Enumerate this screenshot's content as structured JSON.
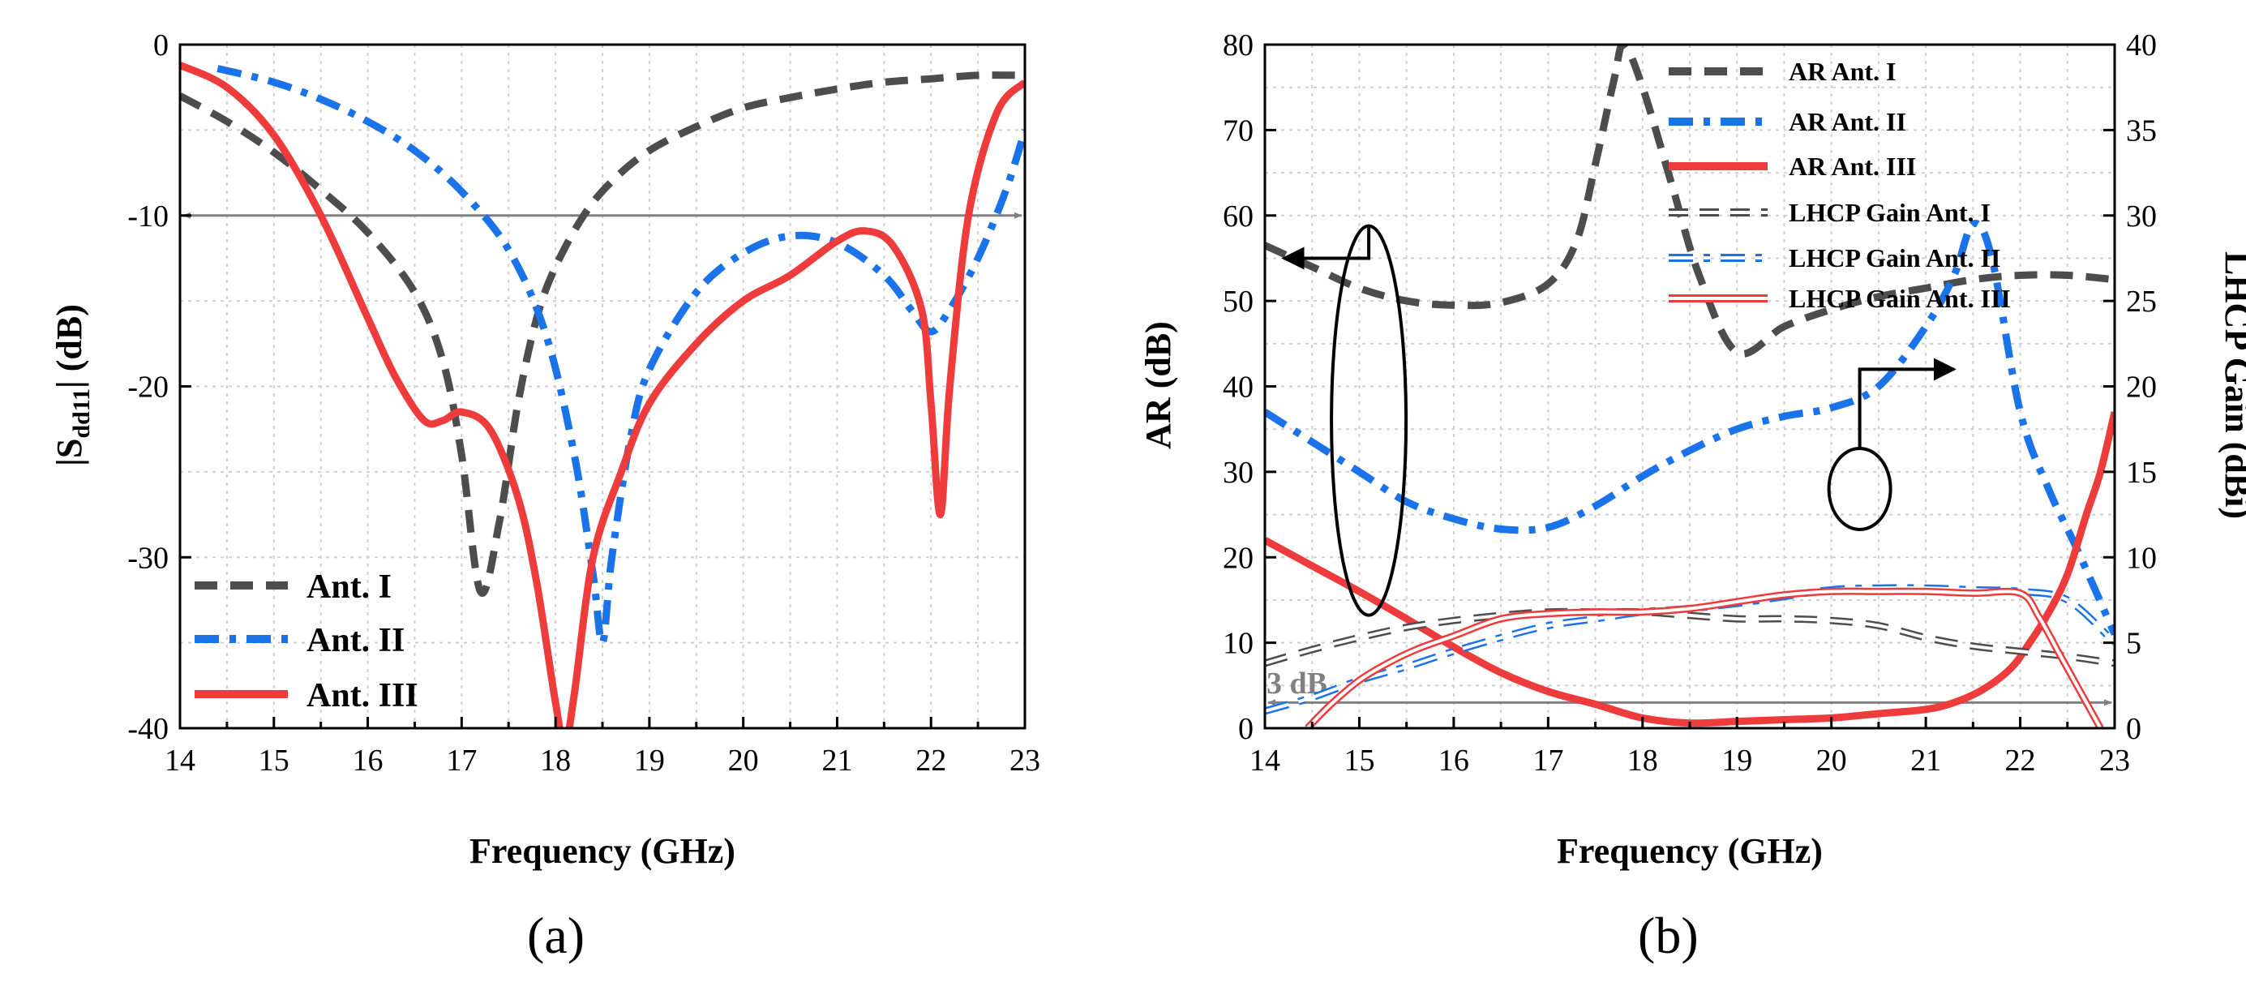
{
  "colors": {
    "ant1": "#4d4d4d",
    "ant2": "#1a73e8",
    "ant3": "#ee3b3b",
    "ref": "#808080",
    "grid": "#cfcfcf",
    "ellipse": "#000000"
  },
  "chart_data": [
    {
      "type": "line",
      "panel_label": "(a)",
      "xlabel": "Frequency (GHz)",
      "ylabel_prefix": "|S",
      "ylabel_sub": "dd11",
      "ylabel_suffix": "| (dB)",
      "xlim": [
        14,
        23
      ],
      "ylim": [
        -40,
        0
      ],
      "xticks": [
        14,
        15,
        16,
        17,
        18,
        19,
        20,
        21,
        22,
        23
      ],
      "yticks": [
        0,
        -10,
        -20,
        -30,
        -40
      ],
      "grid": true,
      "reference_line": {
        "y": -10,
        "x": [
          14,
          23
        ],
        "arrows": "both"
      },
      "legend": [
        "Ant. I",
        "Ant. II",
        "Ant. III"
      ],
      "series": [
        {
          "name": "Ant. I",
          "style": "dash",
          "color_key": "ant1",
          "x": [
            14,
            14.5,
            15,
            15.5,
            16,
            16.5,
            16.8,
            17.0,
            17.2,
            17.4,
            17.6,
            17.8,
            18.0,
            18.3,
            18.6,
            19,
            19.5,
            20,
            20.5,
            21,
            21.5,
            22,
            22.5,
            23
          ],
          "y": [
            -3,
            -4.5,
            -6.3,
            -8.5,
            -11,
            -14.5,
            -18.5,
            -24,
            -32,
            -28,
            -21,
            -16,
            -13,
            -10,
            -8,
            -6.2,
            -4.8,
            -3.7,
            -3.1,
            -2.6,
            -2.2,
            -2,
            -1.8,
            -1.8
          ]
        },
        {
          "name": "Ant. II",
          "style": "dashdot",
          "color_key": "ant2",
          "x": [
            14.4,
            15,
            15.5,
            16,
            16.5,
            17,
            17.5,
            17.9,
            18.2,
            18.4,
            18.5,
            18.6,
            18.8,
            19,
            19.5,
            20,
            20.5,
            21,
            21.5,
            21.8,
            22.0,
            22.2,
            22.5,
            22.8,
            23
          ],
          "y": [
            -1.4,
            -2.2,
            -3.2,
            -4.5,
            -6.2,
            -8.6,
            -12,
            -17,
            -24,
            -31,
            -35,
            -30,
            -23,
            -19,
            -14.5,
            -12.2,
            -11.2,
            -11.6,
            -13.5,
            -15.6,
            -16.8,
            -15.5,
            -12.5,
            -8.5,
            -5
          ]
        },
        {
          "name": "Ant. III",
          "style": "solid",
          "color_key": "ant3",
          "x": [
            14,
            14.5,
            15,
            15.5,
            16,
            16.3,
            16.6,
            16.8,
            17.0,
            17.3,
            17.6,
            17.8,
            18.0,
            18.1,
            18.2,
            18.4,
            18.7,
            19,
            19.5,
            20,
            20.5,
            21,
            21.3,
            21.6,
            21.9,
            22.0,
            22.1,
            22.2,
            22.4,
            22.7,
            23
          ],
          "y": [
            -1.2,
            -2.5,
            -5.3,
            -10,
            -16,
            -19.5,
            -22,
            -22,
            -21.5,
            -22.5,
            -26.5,
            -31.5,
            -38.5,
            -41,
            -38,
            -30,
            -25,
            -21,
            -17.5,
            -15,
            -13.5,
            -11.5,
            -10.9,
            -11.8,
            -15.5,
            -21,
            -27.5,
            -20,
            -10,
            -4,
            -2.2
          ]
        }
      ]
    },
    {
      "type": "line",
      "panel_label": "(b)",
      "xlabel": "Frequency (GHz)",
      "ylabel": "AR (dB)",
      "ylabel_right": "LHCP Gain (dBi)",
      "xlim": [
        14,
        23
      ],
      "ylim": [
        0,
        80
      ],
      "ylim_right": [
        0,
        40
      ],
      "xticks": [
        14,
        15,
        16,
        17,
        18,
        19,
        20,
        21,
        22,
        23
      ],
      "yticks": [
        0,
        10,
        20,
        30,
        40,
        50,
        60,
        70,
        80
      ],
      "yticks_right": [
        0,
        5,
        10,
        15,
        20,
        25,
        30,
        35,
        40
      ],
      "grid": true,
      "reference_line": {
        "y": 3,
        "x": [
          14,
          23
        ],
        "label": "3 dB",
        "arrows": "both"
      },
      "annotations": [
        {
          "type": "ellipse",
          "target_axis": "left",
          "center": [
            15.1,
            36
          ],
          "arrow_to": [
            14.2,
            55
          ]
        },
        {
          "type": "ellipse",
          "target_axis": "right",
          "center": [
            20.3,
            14
          ],
          "arrow_to": [
            21.3,
            21
          ]
        }
      ],
      "legend": [
        "AR Ant. I",
        "AR Ant. II",
        "AR Ant. III",
        "LHCP Gain Ant. I",
        "LHCP Gain Ant. II",
        "LHCP Gain Ant. III"
      ],
      "series": [
        {
          "name": "AR Ant. I",
          "axis": "left",
          "style": "dash",
          "color_key": "ant1",
          "x": [
            14,
            14.5,
            15,
            15.5,
            16,
            16.5,
            17,
            17.3,
            17.5,
            17.7,
            17.8,
            18.0,
            18.3,
            18.6,
            19,
            19.5,
            20,
            20.5,
            21,
            21.5,
            22,
            22.5,
            23
          ],
          "y": [
            56.5,
            54,
            51.5,
            50,
            49.5,
            49.8,
            52,
            57,
            66,
            76,
            80,
            75,
            64,
            53,
            44,
            47,
            49,
            50.5,
            51.5,
            52.5,
            53,
            53,
            52.5
          ]
        },
        {
          "name": "AR Ant. II",
          "axis": "left",
          "style": "dashdot",
          "color_key": "ant2",
          "x": [
            14,
            14.5,
            15,
            15.5,
            16,
            16.5,
            17,
            17.5,
            18,
            18.5,
            19,
            19.5,
            20,
            20.5,
            21,
            21.3,
            21.5,
            21.7,
            22,
            22.3,
            22.6,
            23
          ],
          "y": [
            37,
            33.5,
            30,
            26.5,
            24.5,
            23.3,
            23.5,
            26,
            29.5,
            32.5,
            35,
            36.5,
            37.5,
            40,
            47,
            53,
            59,
            55,
            37,
            28,
            21,
            11
          ]
        },
        {
          "name": "AR Ant. III",
          "axis": "left",
          "style": "solid",
          "color_key": "ant3",
          "x": [
            14,
            14.5,
            15,
            15.5,
            16,
            16.5,
            17,
            17.5,
            18,
            18.5,
            19,
            19.5,
            20,
            20.5,
            21,
            21.3,
            21.6,
            21.9,
            22.1,
            22.3,
            22.5,
            22.7,
            22.85,
            23
          ],
          "y": [
            22,
            19,
            16,
            12.8,
            9.5,
            6.5,
            4.3,
            2.8,
            1.2,
            0.6,
            0.8,
            1,
            1.2,
            1.7,
            2.2,
            3,
            4.5,
            7,
            10,
            13.5,
            18,
            25,
            30,
            37
          ]
        },
        {
          "name": "LHCP Gain Ant. I",
          "axis": "right",
          "style": "dash-double",
          "color_key": "ant1",
          "x": [
            14,
            14.5,
            15,
            15.5,
            16,
            16.5,
            17,
            17.5,
            18,
            18.5,
            19,
            19.5,
            20,
            20.5,
            21,
            21.5,
            22,
            22.5,
            23
          ],
          "y": [
            3.8,
            4.6,
            5.3,
            5.9,
            6.3,
            6.6,
            6.8,
            6.8,
            6.8,
            6.6,
            6.4,
            6.4,
            6.3,
            6,
            5.3,
            4.8,
            4.5,
            4.2,
            3.8
          ]
        },
        {
          "name": "LHCP Gain Ant. II",
          "axis": "right",
          "style": "dashdot-double",
          "color_key": "ant2",
          "x": [
            14,
            14.5,
            15,
            15.5,
            16,
            16.5,
            17,
            17.5,
            18,
            18.5,
            19,
            19.5,
            20,
            20.5,
            21,
            21.5,
            22,
            22.5,
            23
          ],
          "y": [
            1,
            1.8,
            2.8,
            3.6,
            4.5,
            5.3,
            6,
            6.4,
            6.8,
            7,
            7.3,
            7.7,
            8.1,
            8.2,
            8.2,
            8.1,
            8,
            7.5,
            5
          ]
        },
        {
          "name": "LHCP Gain Ant. III",
          "axis": "right",
          "style": "solid-double",
          "color_key": "ant3",
          "x": [
            14.45,
            14.7,
            15,
            15.3,
            15.6,
            16,
            16.5,
            17,
            17.5,
            18,
            18.5,
            19,
            19.5,
            20,
            20.5,
            21,
            21.5,
            22,
            22.2,
            22.4,
            22.6,
            22.75,
            22.85
          ],
          "y": [
            0,
            1.4,
            2.8,
            3.8,
            4.6,
            5.4,
            6.4,
            6.7,
            6.8,
            6.8,
            7,
            7.4,
            7.8,
            8,
            8,
            8,
            7.9,
            7.9,
            6.5,
            4.5,
            2.5,
            1,
            0
          ]
        }
      ]
    }
  ]
}
